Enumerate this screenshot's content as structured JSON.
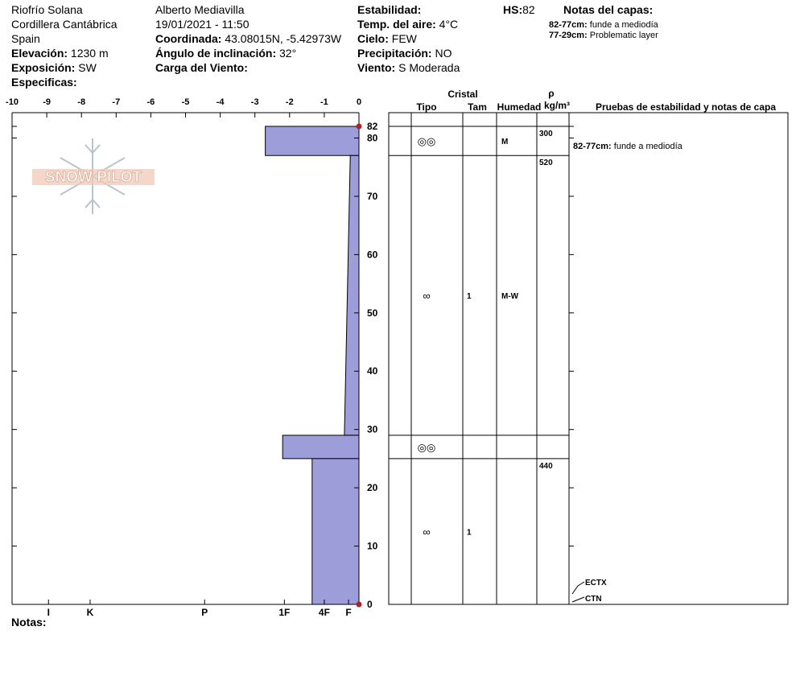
{
  "header": {
    "location": [
      "Riofrío Solana",
      "Cordillera Cantábrica",
      "Spain"
    ],
    "elevation": {
      "label": "Elevación:",
      "value": "1230 m"
    },
    "aspect": {
      "label": "Exposición:",
      "value": "SW"
    },
    "specifics": {
      "label": "Especificas:"
    },
    "observer": "Alberto Mediavilla",
    "datetime": "19/01/2021 - 11:50",
    "coordinates": {
      "label": "Coordinada:",
      "value": "43.08015N, -5.42973W"
    },
    "slope": {
      "label": "Ángulo de inclinación:",
      "value": "32°"
    },
    "wind_loading": {
      "label": "Carga del Viento:"
    },
    "stability": {
      "label": "Estabilidad:"
    },
    "air_temp": {
      "label": "Temp. del aire:",
      "value": "4°C"
    },
    "sky": {
      "label": "Cielo:",
      "value": "FEW"
    },
    "precipitation": {
      "label": "Precipitación:",
      "value": "NO"
    },
    "wind": {
      "label": "Viento:",
      "value": "S Moderada"
    },
    "hs": {
      "label": "HS:",
      "value": "82"
    },
    "layer_notes": {
      "title": "Notas del capas:",
      "items": [
        {
          "range": "82-77cm:",
          "text": "funde a mediodía"
        },
        {
          "range": "77-29cm:",
          "text": "Problematic layer"
        }
      ]
    }
  },
  "logo": "SNOW PILOT",
  "chart_data": {
    "type": "snow-profile",
    "color": "#9d9dd9",
    "xlim": [
      -10,
      0
    ],
    "xticks": [
      -10,
      -9,
      -8,
      -7,
      -6,
      -5,
      -4,
      -3,
      -2,
      -1,
      0
    ],
    "ylim": [
      0,
      82
    ],
    "yticks": [
      0,
      10,
      20,
      30,
      40,
      50,
      60,
      70,
      80,
      82
    ],
    "hardness_ticks": [
      {
        "value": -8.95,
        "label": "I"
      },
      {
        "value": -7.75,
        "label": "K"
      },
      {
        "value": -4.45,
        "label": "P"
      },
      {
        "value": -2.15,
        "label": "1F"
      },
      {
        "value": -1.0,
        "label": "4F"
      },
      {
        "value": -0.3,
        "label": "F"
      }
    ],
    "table_headers": {
      "crystal": "Cristal",
      "type": "Tipo",
      "size": "Tam",
      "moisture": "Humedad",
      "rho": "ρ",
      "density_unit": "kg/m³",
      "tests": "Pruebas de estabilidad y notas de capa"
    },
    "layers": [
      {
        "top": 82,
        "bottom": 77,
        "hardness_top": -2.7,
        "hardness_bottom": -2.7,
        "grain": "◎◎",
        "moisture": "M",
        "density": 300
      },
      {
        "top": 77,
        "bottom": 29,
        "hardness_top": -0.25,
        "hardness_bottom": -0.42,
        "grain": "∞",
        "size": "1",
        "moisture": "M-W",
        "density": 520
      },
      {
        "top": 29,
        "bottom": 25,
        "hardness_top": -2.2,
        "hardness_bottom": -2.2,
        "grain": "◎◎"
      },
      {
        "top": 25,
        "bottom": 0,
        "hardness_top": -1.35,
        "hardness_bottom": -1.35,
        "grain": "∞",
        "size": "1",
        "density": 440
      }
    ],
    "tests": [
      "ECTX",
      "CTN"
    ]
  },
  "footer": "Notas:"
}
